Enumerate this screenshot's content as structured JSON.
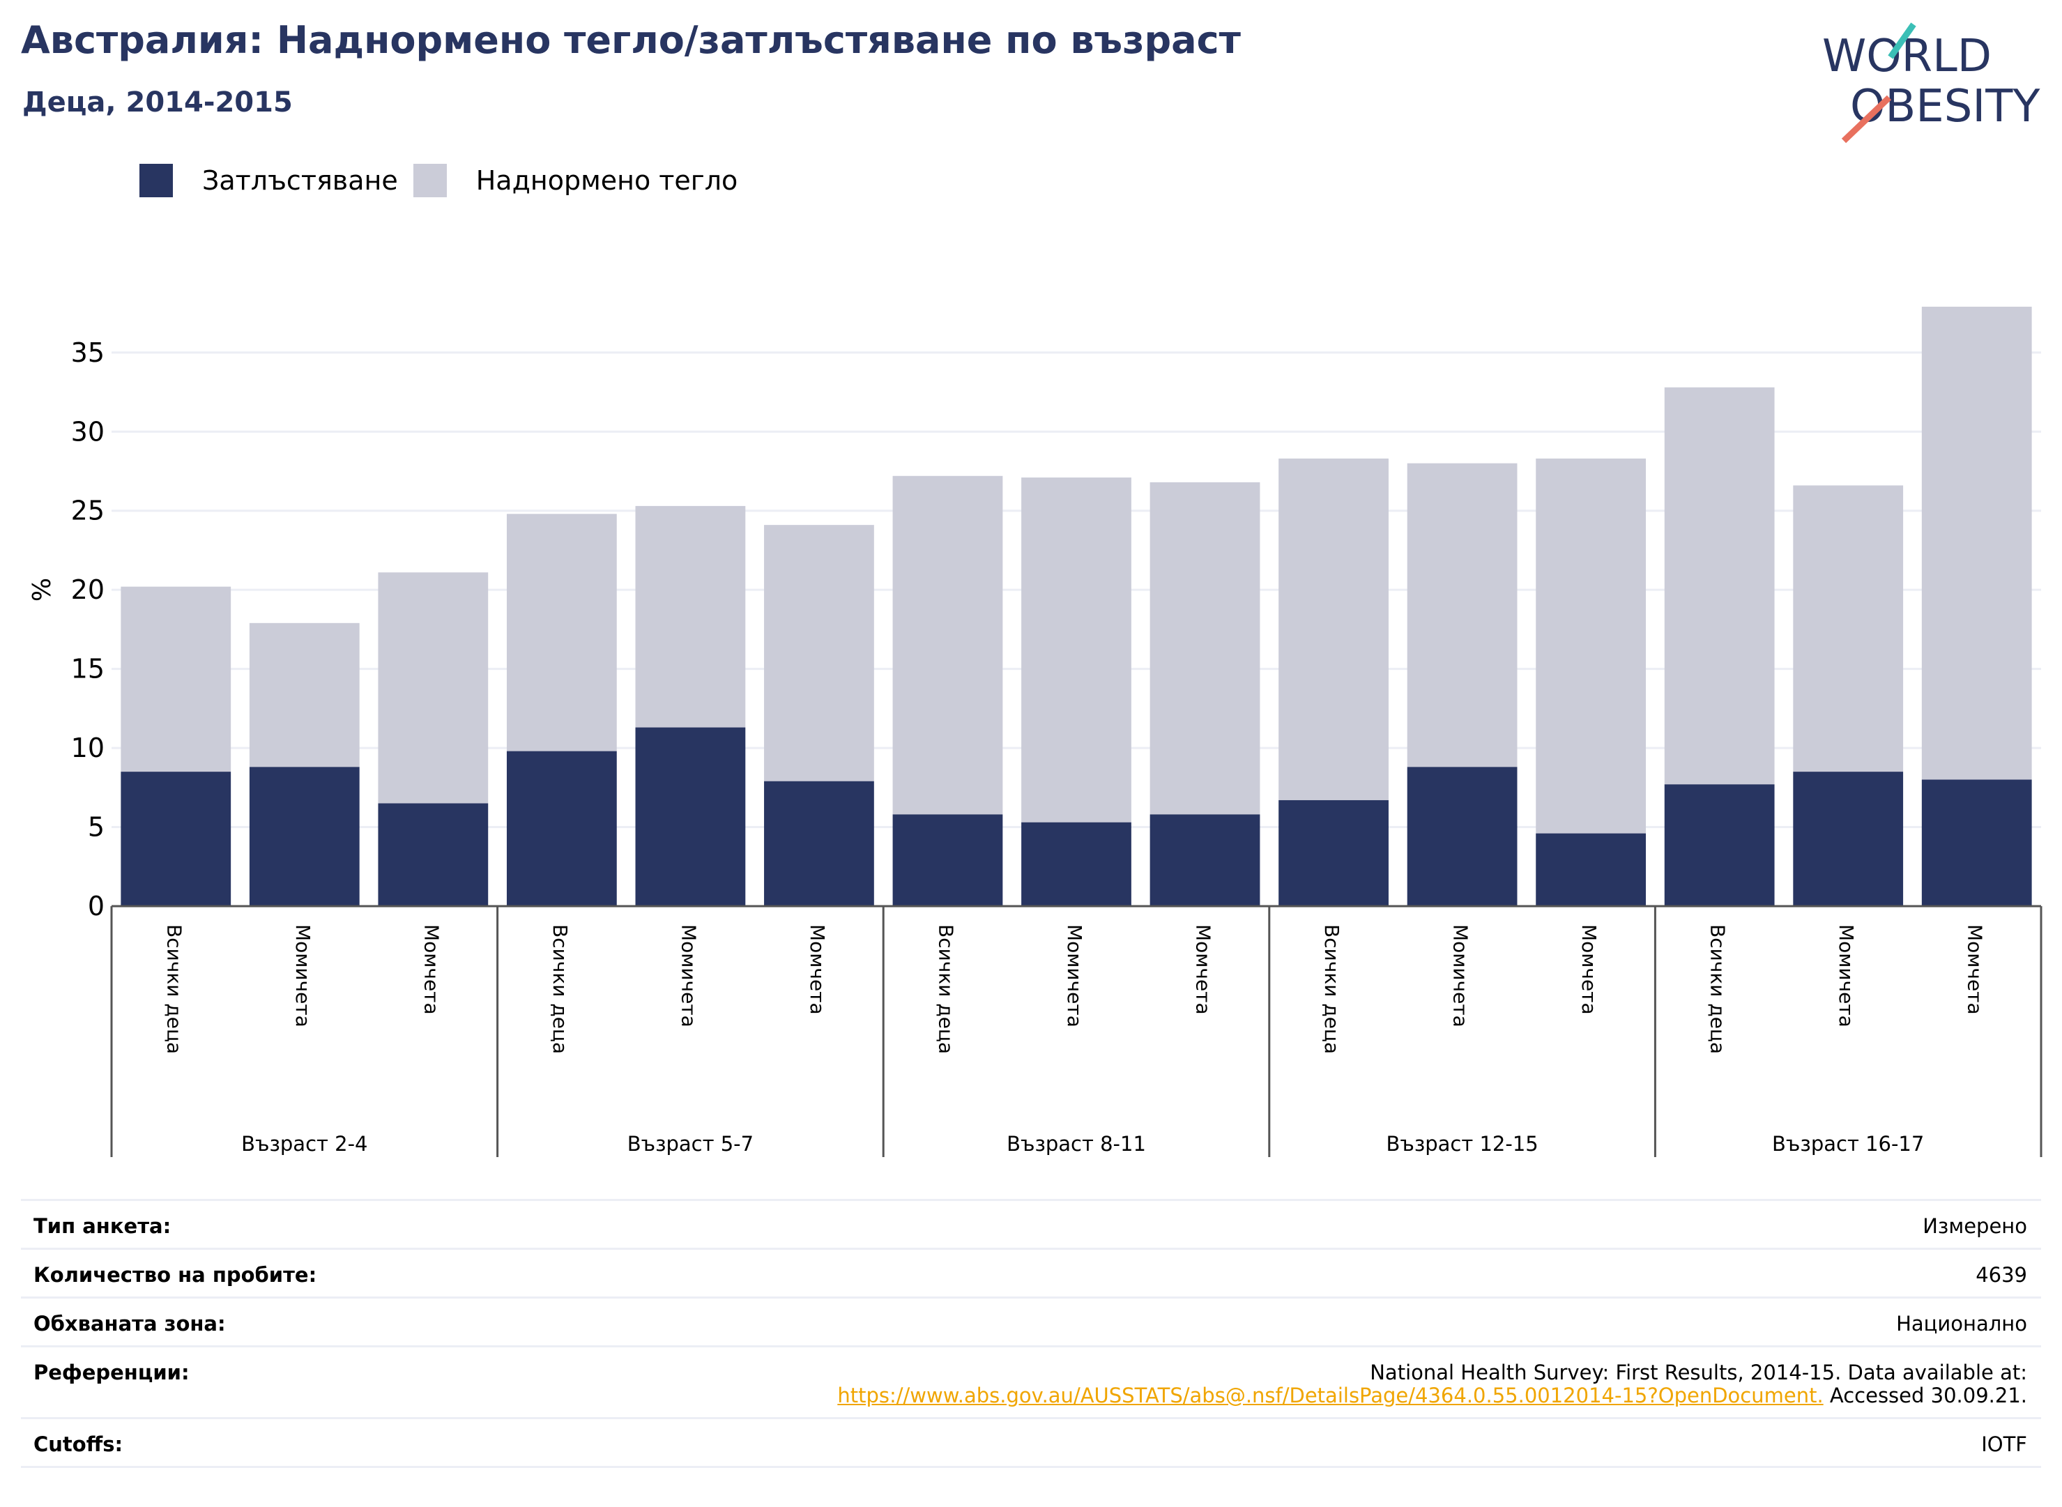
{
  "title": "Австралия: Наднормено тегло/затлъстяване по възраст",
  "subtitle": "Деца, 2014-2015",
  "logo": {
    "line1": "WORLD",
    "line2": "OBESITY"
  },
  "colors": {
    "obesity": "#283561",
    "overweight": "#cbccd8",
    "title": "#283561",
    "link": "#f0a500",
    "grid": "#eceef5"
  },
  "legend": {
    "obesity": "Затлъстяване",
    "overweight": "Наднормено тегло"
  },
  "chart_data": {
    "type": "bar",
    "stacked": true,
    "ylabel": "%",
    "ylim": [
      0,
      38
    ],
    "yticks": [
      0,
      5,
      10,
      15,
      20,
      25,
      30,
      35
    ],
    "grid": true,
    "legend_position": "top-left",
    "groups": [
      {
        "label": "Възраст 2-4",
        "categories": [
          "Всички деца",
          "Момичета",
          "Момчета"
        ],
        "obesity": [
          8.5,
          8.8,
          6.5
        ],
        "total": [
          20.2,
          17.9,
          21.1
        ]
      },
      {
        "label": "Възраст 5-7",
        "categories": [
          "Всички деца",
          "Момичета",
          "Момчета"
        ],
        "obesity": [
          9.8,
          11.3,
          7.9
        ],
        "total": [
          24.8,
          25.3,
          24.1
        ]
      },
      {
        "label": "Възраст 8-11",
        "categories": [
          "Всички деца",
          "Момичета",
          "Момчета"
        ],
        "obesity": [
          5.8,
          5.3,
          5.8
        ],
        "total": [
          27.2,
          27.1,
          26.8
        ]
      },
      {
        "label": "Възраст 12-15",
        "categories": [
          "Всички деца",
          "Момичета",
          "Момчета"
        ],
        "obesity": [
          6.7,
          8.8,
          4.6
        ],
        "total": [
          28.3,
          28.0,
          28.3
        ]
      },
      {
        "label": "Възраст 16-17",
        "categories": [
          "Всички деца",
          "Момичета",
          "Момчета"
        ],
        "obesity": [
          7.7,
          8.5,
          8.0
        ],
        "total": [
          32.8,
          26.6,
          37.9
        ]
      }
    ]
  },
  "meta": {
    "survey_type": {
      "label": "Тип анкета:",
      "value": "Измерено"
    },
    "sample_size": {
      "label": "Количество на пробите:",
      "value": "4639"
    },
    "area": {
      "label": "Обхваната зона:",
      "value": "Национално"
    },
    "references": {
      "label": "Референции:",
      "line1": "National Health Survey: First Results, 2014-15. Data available at:",
      "link": "https://www.abs.gov.au/AUSSTATS/abs@.nsf/DetailsPage/4364.0.55.0012014-15?OpenDocument.",
      "suffix": " Accessed 30.09.21."
    },
    "cutoffs": {
      "label": "Cutoffs:",
      "value": "IOTF"
    }
  }
}
